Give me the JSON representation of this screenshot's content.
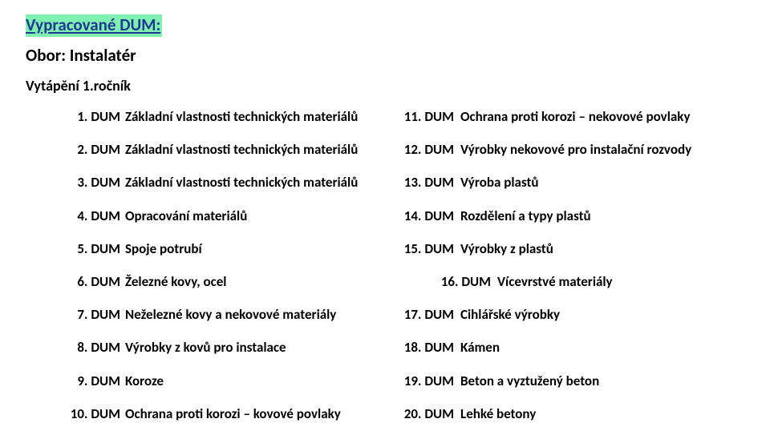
{
  "title_text": "Vypracované DUM:",
  "title_bg": "#7ff0b0",
  "title_color": "#1f3a93",
  "title_fontsize": 21,
  "subtitle_text": "Obor:  Instalatér",
  "subtitle_fontsize": 21,
  "subtitle_color": "#000000",
  "subheading_text": "Vytápění 1.ročník",
  "subheading_fontsize": 18,
  "subheading_color": "#000000",
  "rows": [
    {
      "ln": "1. DUM",
      "lt": "Základní vlastnosti technických materiálů",
      "rn": "11. DUM",
      "rt": "Ochrana proti korozi – nekovové povlaky",
      "indent": false
    },
    {
      "ln": "2. DUM",
      "lt": "Základní vlastnosti technických materiálů",
      "rn": "12. DUM",
      "rt": "Výrobky nekovové pro instalační rozvody",
      "indent": false
    },
    {
      "ln": "3. DUM",
      "lt": "Základní vlastnosti technických materiálů",
      "rn": "13. DUM",
      "rt": "Výroba plastů",
      "indent": false
    },
    {
      "ln": "4. DUM",
      "lt": "Opracování materiálů",
      "rn": "14. DUM",
      "rt": "Rozdělení a typy plastů",
      "indent": false
    },
    {
      "ln": "5. DUM",
      "lt": "Spoje potrubí",
      "rn": "15. DUM",
      "rt": "Výrobky z plastů",
      "indent": false
    },
    {
      "ln": "6. DUM",
      "lt": "Železné kovy, ocel",
      "rn": "16. DUM",
      "rt": "Vícevrstvé materiály",
      "indent": true
    },
    {
      "ln": "7. DUM",
      "lt": "Neželezné kovy a nekovové materiály",
      "rn": "17. DUM",
      "rt": "Cihlářské výrobky",
      "indent": false
    },
    {
      "ln": "8. DUM",
      "lt": "Výrobky z kovů pro instalace",
      "rn": "18. DUM",
      "rt": "Kámen",
      "indent": false
    },
    {
      "ln": "9. DUM",
      "lt": "Koroze",
      "rn": "19. DUM",
      "rt": "Beton a vyztužený beton",
      "indent": false
    },
    {
      "ln": "10. DUM",
      "lt": "Ochrana proti korozi – kovové povlaky",
      "rn": "20. DUM",
      "rt": "Lehké betony",
      "indent": false
    }
  ]
}
